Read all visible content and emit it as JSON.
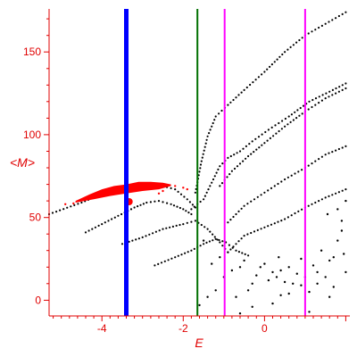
{
  "chart_data": {
    "type": "scatter",
    "title": "",
    "xlabel": "E",
    "ylabel": "<M>",
    "xlim": [
      -5.3,
      2.1
    ],
    "ylim": [
      -9.5,
      176
    ],
    "x_ticks": [
      -4,
      -2,
      0
    ],
    "x_tick_labels": [
      "-4",
      "-2",
      "0"
    ],
    "y_ticks": [
      0,
      50,
      100,
      150
    ],
    "y_tick_labels": [
      "0",
      "50",
      "100",
      "150"
    ],
    "grid": false,
    "axis_color": "#e00000",
    "vertical_lines": [
      {
        "x": -3.4,
        "color": "#0000ff",
        "style": "thick"
      },
      {
        "x": -1.65,
        "color": "#007000",
        "style": "thin"
      },
      {
        "x": -0.98,
        "color": "#ff00ff",
        "style": "thin"
      },
      {
        "x": 1.0,
        "color": "#ff00ff",
        "style": "thin"
      }
    ],
    "series": [
      {
        "type": "curve",
        "color": "#000000",
        "points": [
          [
            -5.3,
            52
          ],
          [
            -4.5,
            59
          ],
          [
            -4,
            64
          ],
          [
            -3.5,
            68
          ],
          [
            -3,
            70
          ],
          [
            -2.5,
            69
          ],
          [
            -2.2,
            67
          ],
          [
            -1.9,
            61
          ],
          [
            -1.7,
            56
          ]
        ]
      },
      {
        "type": "curve",
        "color": "#000000",
        "points": [
          [
            -4.4,
            41
          ],
          [
            -4,
            46
          ],
          [
            -3.6,
            51
          ],
          [
            -3.2,
            56
          ],
          [
            -2.9,
            59
          ],
          [
            -2.6,
            60
          ],
          [
            -2.3,
            58
          ],
          [
            -2.0,
            55
          ],
          [
            -1.8,
            52
          ]
        ]
      },
      {
        "type": "curve",
        "color": "#000000",
        "points": [
          [
            -3.5,
            34
          ],
          [
            -3.0,
            38
          ],
          [
            -2.5,
            43
          ],
          [
            -2.0,
            46
          ],
          [
            -1.7,
            48
          ],
          [
            -1.4,
            43
          ],
          [
            -1.1,
            35
          ],
          [
            -0.9,
            29
          ]
        ]
      },
      {
        "type": "curve",
        "color": "#000000",
        "points": [
          [
            -2.7,
            21
          ],
          [
            -2.2,
            26
          ],
          [
            -1.8,
            30
          ],
          [
            -1.5,
            34
          ],
          [
            -1.2,
            37
          ],
          [
            -0.95,
            35
          ],
          [
            -0.7,
            30
          ],
          [
            -0.4,
            27
          ]
        ]
      },
      {
        "type": "curve",
        "color": "#000000",
        "points": [
          [
            -1.8,
            55
          ],
          [
            -1.5,
            61
          ],
          [
            -1.3,
            71
          ],
          [
            -1.1,
            81
          ],
          [
            -0.9,
            86
          ],
          [
            -0.6,
            90
          ],
          [
            -0.3,
            96
          ],
          [
            0.1,
            103
          ],
          [
            0.6,
            111
          ],
          [
            1.1,
            120
          ],
          [
            1.6,
            126
          ],
          [
            2.0,
            131
          ]
        ]
      },
      {
        "type": "curve",
        "color": "#000000",
        "points": [
          [
            -1.7,
            65
          ],
          [
            -1.55,
            84
          ],
          [
            -1.4,
            99
          ],
          [
            -1.2,
            111
          ],
          [
            -0.9,
            118
          ],
          [
            -0.5,
            127
          ],
          [
            0,
            138
          ],
          [
            0.5,
            150
          ],
          [
            1.0,
            160
          ],
          [
            1.5,
            167
          ],
          [
            2.0,
            174
          ]
        ]
      },
      {
        "type": "curve",
        "color": "#000000",
        "points": [
          [
            -1.1,
            69
          ],
          [
            -0.8,
            78
          ],
          [
            -0.4,
            87
          ],
          [
            0,
            95
          ],
          [
            0.5,
            105
          ],
          [
            1.0,
            114
          ],
          [
            1.5,
            122
          ],
          [
            2.0,
            128
          ]
        ]
      },
      {
        "type": "curve",
        "color": "#000000",
        "points": [
          [
            -0.9,
            47
          ],
          [
            -0.5,
            57
          ],
          [
            0,
            65
          ],
          [
            0.5,
            73
          ],
          [
            1.0,
            80
          ],
          [
            1.5,
            88
          ],
          [
            2.0,
            93
          ]
        ]
      },
      {
        "type": "curve",
        "color": "#000000",
        "points": [
          [
            -0.9,
            29
          ],
          [
            -0.5,
            39
          ],
          [
            0,
            44
          ],
          [
            0.5,
            49
          ],
          [
            1.0,
            56
          ],
          [
            1.5,
            62
          ],
          [
            2.0,
            67
          ]
        ]
      },
      {
        "type": "scatter",
        "color": "#000000",
        "points": [
          [
            -1.6,
            -3
          ],
          [
            -1.4,
            2
          ],
          [
            -1.2,
            6
          ],
          [
            -1.0,
            14
          ],
          [
            -0.8,
            18
          ],
          [
            -0.6,
            20
          ],
          [
            -0.5,
            24
          ],
          [
            -0.3,
            10
          ],
          [
            -0.2,
            15
          ],
          [
            -0.1,
            20
          ],
          [
            0,
            22
          ],
          [
            0.1,
            12
          ],
          [
            0.2,
            17
          ],
          [
            0.3,
            14
          ],
          [
            0.4,
            18
          ],
          [
            0.5,
            11
          ],
          [
            0.6,
            20
          ],
          [
            0.7,
            10
          ],
          [
            0.8,
            16
          ],
          [
            0.9,
            25
          ],
          [
            1.0,
            14
          ],
          [
            1.1,
            5
          ],
          [
            1.2,
            21
          ],
          [
            1.3,
            17
          ],
          [
            1.4,
            30
          ],
          [
            1.5,
            14
          ],
          [
            1.6,
            24
          ],
          [
            1.7,
            26
          ],
          [
            1.8,
            36
          ],
          [
            1.9,
            42
          ],
          [
            2.0,
            17
          ],
          [
            -0.7,
            2
          ],
          [
            -0.3,
            -4
          ],
          [
            0.2,
            -2
          ],
          [
            0.6,
            4
          ],
          [
            1.1,
            -7
          ],
          [
            1.6,
            2
          ],
          [
            -1.3,
            22
          ],
          [
            -0.4,
            6
          ],
          [
            0.9,
            9
          ],
          [
            1.3,
            10
          ],
          [
            1.8,
            55
          ],
          [
            1.9,
            48
          ],
          [
            2.0,
            60
          ],
          [
            -0.6,
            -8
          ],
          [
            0.4,
            3
          ],
          [
            1.7,
            8
          ],
          [
            -1.5,
            36
          ],
          [
            -1.1,
            26
          ],
          [
            0.35,
            26
          ],
          [
            1.55,
            52
          ],
          [
            1.95,
            28
          ]
        ]
      },
      {
        "type": "band",
        "color": "#ff0000",
        "upper": [
          [
            -4.65,
            60
          ],
          [
            -4.3,
            64
          ],
          [
            -4.0,
            67
          ],
          [
            -3.7,
            69
          ],
          [
            -3.4,
            70
          ],
          [
            -3.1,
            71.5
          ],
          [
            -2.8,
            71.5
          ],
          [
            -2.5,
            71
          ],
          [
            -2.3,
            70
          ]
        ],
        "lower": [
          [
            -2.3,
            69
          ],
          [
            -2.6,
            67
          ],
          [
            -3.0,
            66
          ],
          [
            -3.4,
            64.5
          ],
          [
            -3.8,
            63
          ],
          [
            -4.2,
            61
          ],
          [
            -4.65,
            59
          ]
        ]
      },
      {
        "type": "scatter",
        "color": "#ff0000",
        "points": [
          [
            -4.9,
            58
          ],
          [
            -4.7,
            58.5
          ],
          [
            -2.4,
            69
          ],
          [
            -2.2,
            69
          ],
          [
            -2.0,
            68
          ],
          [
            -1.9,
            67
          ],
          [
            -2.5,
            66
          ],
          [
            -2.6,
            64.5
          ]
        ]
      },
      {
        "type": "marker",
        "color": "#ff0000",
        "points": [
          [
            -3.33,
            59.5
          ]
        ]
      }
    ]
  }
}
